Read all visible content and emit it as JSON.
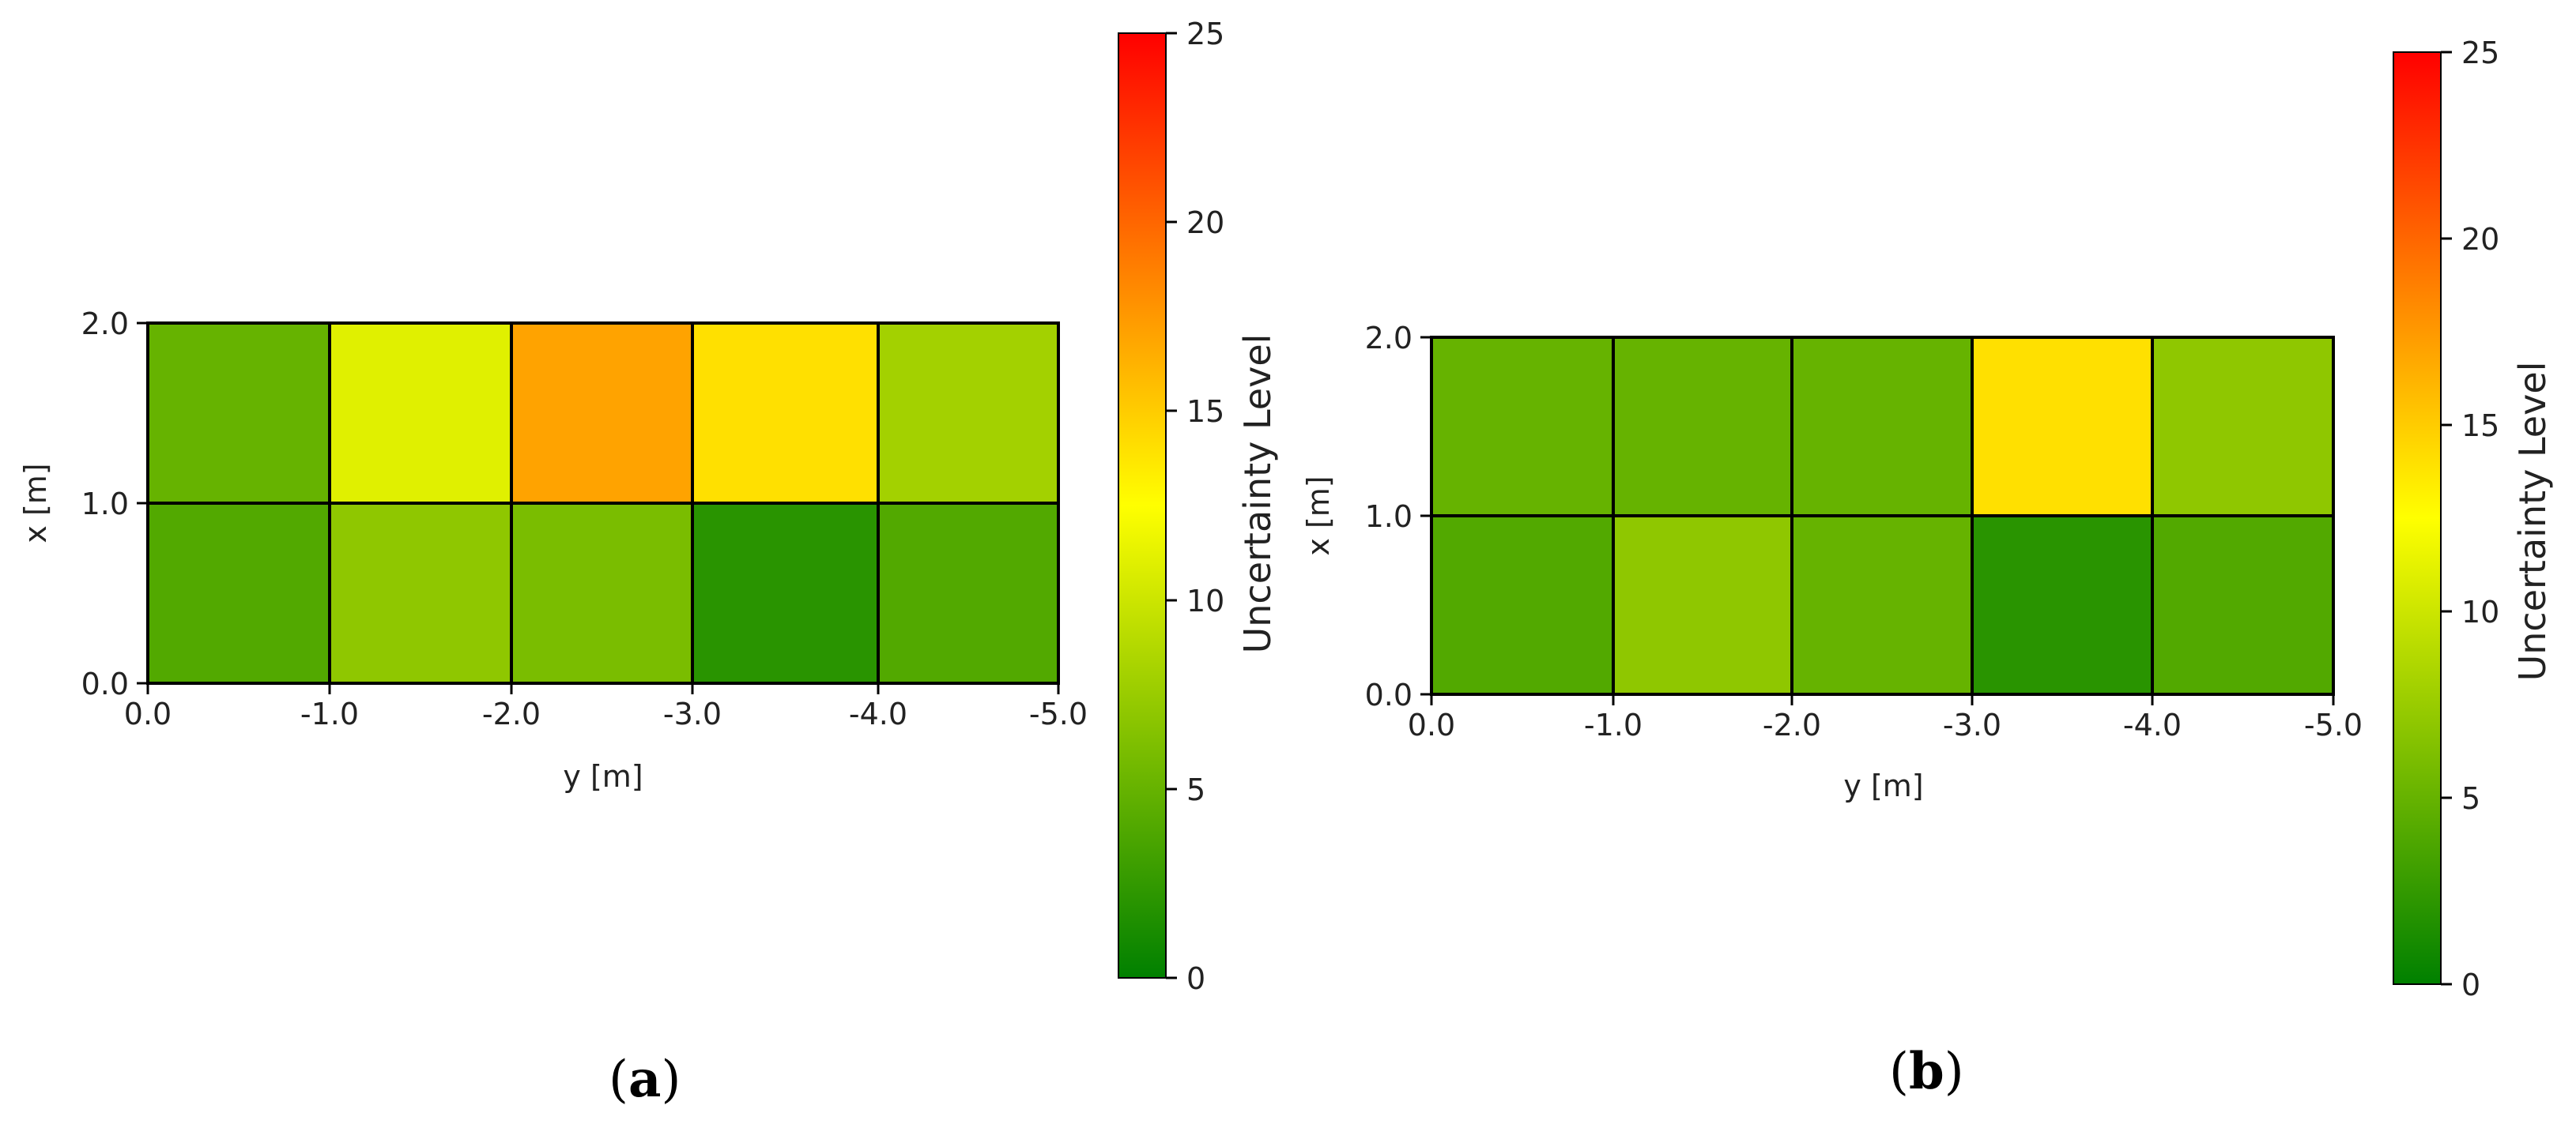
{
  "chart_data": [
    {
      "type": "heatmap",
      "panel_label": "a",
      "xlabel": "y [m]",
      "ylabel": "x [m]",
      "x_ticks": [
        "0.0",
        "-1.0",
        "-2.0",
        "-3.0",
        "-4.0",
        "-5.0"
      ],
      "y_ticks": [
        "0.0",
        "1.0",
        "2.0"
      ],
      "xlim": [
        0,
        -5
      ],
      "ylim": [
        0,
        2
      ],
      "rows": [
        {
          "x_range": [
            1.0,
            2.0
          ],
          "values": [
            5,
            11,
            17,
            14,
            8
          ]
        },
        {
          "x_range": [
            0.0,
            1.0
          ],
          "values": [
            4,
            7,
            6,
            2,
            4
          ]
        }
      ],
      "colorbar": {
        "label": "Uncertainty Level",
        "range": [
          0,
          25
        ],
        "ticks": [
          "0",
          "5",
          "10",
          "15",
          "20",
          "25"
        ],
        "colors": [
          "#008000",
          "#ffff00",
          "#ff0000"
        ]
      }
    },
    {
      "type": "heatmap",
      "panel_label": "b",
      "xlabel": "y [m]",
      "ylabel": "x [m]",
      "x_ticks": [
        "0.0",
        "-1.0",
        "-2.0",
        "-3.0",
        "-4.0",
        "-5.0"
      ],
      "y_ticks": [
        "0.0",
        "1.0",
        "2.0"
      ],
      "xlim": [
        0,
        -5
      ],
      "ylim": [
        0,
        2
      ],
      "rows": [
        {
          "x_range": [
            1.0,
            2.0
          ],
          "values": [
            5,
            5,
            5,
            14,
            7
          ]
        },
        {
          "x_range": [
            0.0,
            1.0
          ],
          "values": [
            4,
            7,
            5,
            2,
            4
          ]
        }
      ],
      "colorbar": {
        "label": "Uncertainty Level",
        "range": [
          0,
          25
        ],
        "ticks": [
          "0",
          "5",
          "10",
          "15",
          "20",
          "25"
        ],
        "colors": [
          "#008000",
          "#ffff00",
          "#ff0000"
        ]
      }
    }
  ]
}
